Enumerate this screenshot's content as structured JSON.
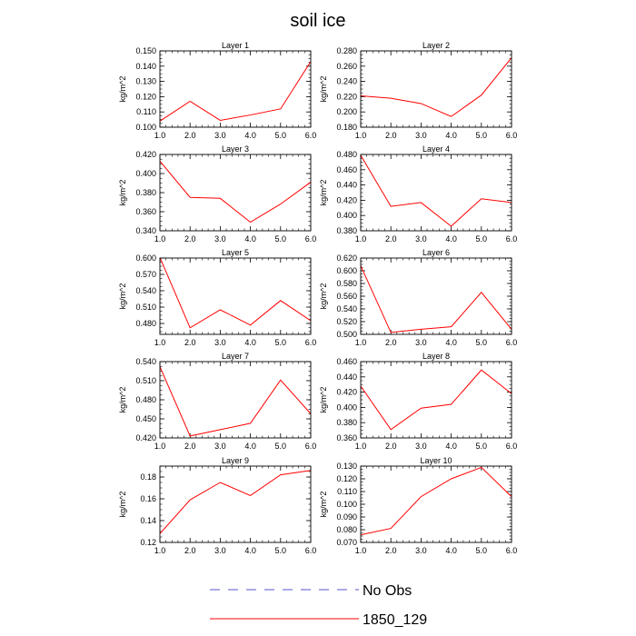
{
  "title": "soil ice",
  "colors": {
    "model": "#ff0000",
    "obs": "#5555cc",
    "axis": "#000000"
  },
  "legend": [
    {
      "label": "No Obs",
      "style": "dashed",
      "color": "#5555cc"
    },
    {
      "label": "1850_129",
      "style": "solid",
      "color": "#ff0000"
    }
  ],
  "chart_data": [
    {
      "type": "line",
      "title": "Layer 1",
      "xlabel": "",
      "ylabel": "kg/m^2",
      "x": [
        1,
        2,
        3,
        4,
        5,
        6
      ],
      "xlim": [
        1,
        6
      ],
      "xticks": [
        "1.0",
        "2.0",
        "3.0",
        "4.0",
        "5.0",
        "6.0"
      ],
      "ylim": [
        0.1,
        0.15
      ],
      "yticks": [
        "0.100",
        "0.110",
        "0.120",
        "0.130",
        "0.140",
        "0.150"
      ],
      "series": [
        {
          "name": "1850_129",
          "values": [
            0.104,
            0.117,
            0.1045,
            0.108,
            0.112,
            0.143
          ]
        }
      ]
    },
    {
      "type": "line",
      "title": "Layer 2",
      "xlabel": "",
      "ylabel": "kg/m^2",
      "x": [
        1,
        2,
        3,
        4,
        5,
        6
      ],
      "xlim": [
        1,
        6
      ],
      "xticks": [
        "1.0",
        "2.0",
        "3.0",
        "4.0",
        "5.0",
        "6.0"
      ],
      "ylim": [
        0.18,
        0.28
      ],
      "yticks": [
        "0.180",
        "0.200",
        "0.220",
        "0.240",
        "0.260",
        "0.280"
      ],
      "series": [
        {
          "name": "1850_129",
          "values": [
            0.221,
            0.218,
            0.211,
            0.194,
            0.222,
            0.271
          ]
        }
      ]
    },
    {
      "type": "line",
      "title": "Layer 3",
      "xlabel": "",
      "ylabel": "kg/m^2",
      "x": [
        1,
        2,
        3,
        4,
        5,
        6
      ],
      "xlim": [
        1,
        6
      ],
      "xticks": [
        "1.0",
        "2.0",
        "3.0",
        "4.0",
        "5.0",
        "6.0"
      ],
      "ylim": [
        0.34,
        0.42
      ],
      "yticks": [
        "0.340",
        "0.360",
        "0.380",
        "0.400",
        "0.420"
      ],
      "series": [
        {
          "name": "1850_129",
          "values": [
            0.413,
            0.375,
            0.374,
            0.349,
            0.368,
            0.391
          ]
        }
      ]
    },
    {
      "type": "line",
      "title": "Layer 4",
      "xlabel": "",
      "ylabel": "kg/m^2",
      "x": [
        1,
        2,
        3,
        4,
        5,
        6
      ],
      "xlim": [
        1,
        6
      ],
      "xticks": [
        "1.0",
        "2.0",
        "3.0",
        "4.0",
        "5.0",
        "6.0"
      ],
      "ylim": [
        0.38,
        0.48
      ],
      "yticks": [
        "0.380",
        "0.400",
        "0.420",
        "0.440",
        "0.460",
        "0.480"
      ],
      "series": [
        {
          "name": "1850_129",
          "values": [
            0.479,
            0.412,
            0.417,
            0.386,
            0.422,
            0.417
          ]
        }
      ]
    },
    {
      "type": "line",
      "title": "Layer 5",
      "xlabel": "",
      "ylabel": "kg/m^2",
      "x": [
        1,
        2,
        3,
        4,
        5,
        6
      ],
      "xlim": [
        1,
        6
      ],
      "xticks": [
        "1.0",
        "2.0",
        "3.0",
        "4.0",
        "5.0",
        "6.0"
      ],
      "ylim": [
        0.46,
        0.6
      ],
      "yticks": [
        "0.480",
        "0.510",
        "0.540",
        "0.570",
        "0.600"
      ],
      "series": [
        {
          "name": "1850_129",
          "values": [
            0.601,
            0.472,
            0.505,
            0.477,
            0.522,
            0.485
          ]
        }
      ]
    },
    {
      "type": "line",
      "title": "Layer 6",
      "xlabel": "",
      "ylabel": "kg/m^2",
      "x": [
        1,
        2,
        3,
        4,
        5,
        6
      ],
      "xlim": [
        1,
        6
      ],
      "xticks": [
        "1.0",
        "2.0",
        "3.0",
        "4.0",
        "5.0",
        "6.0"
      ],
      "ylim": [
        0.5,
        0.62
      ],
      "yticks": [
        "0.500",
        "0.520",
        "0.540",
        "0.560",
        "0.580",
        "0.600",
        "0.620"
      ],
      "series": [
        {
          "name": "1850_129",
          "values": [
            0.608,
            0.503,
            0.508,
            0.512,
            0.566,
            0.508
          ]
        }
      ]
    },
    {
      "type": "line",
      "title": "Layer 7",
      "xlabel": "",
      "ylabel": "kg/m^2",
      "x": [
        1,
        2,
        3,
        4,
        5,
        6
      ],
      "xlim": [
        1,
        6
      ],
      "xticks": [
        "1.0",
        "2.0",
        "3.0",
        "4.0",
        "5.0",
        "6.0"
      ],
      "ylim": [
        0.42,
        0.54
      ],
      "yticks": [
        "0.420",
        "0.450",
        "0.480",
        "0.510",
        "0.540"
      ],
      "series": [
        {
          "name": "1850_129",
          "values": [
            0.532,
            0.423,
            0.433,
            0.443,
            0.511,
            0.458
          ]
        }
      ]
    },
    {
      "type": "line",
      "title": "Layer 8",
      "xlabel": "",
      "ylabel": "kg/m^2",
      "x": [
        1,
        2,
        3,
        4,
        5,
        6
      ],
      "xlim": [
        1,
        6
      ],
      "xticks": [
        "1.0",
        "2.0",
        "3.0",
        "4.0",
        "5.0",
        "6.0"
      ],
      "ylim": [
        0.36,
        0.46
      ],
      "yticks": [
        "0.360",
        "0.380",
        "0.400",
        "0.420",
        "0.440",
        "0.460"
      ],
      "series": [
        {
          "name": "1850_129",
          "values": [
            0.428,
            0.371,
            0.399,
            0.404,
            0.449,
            0.418
          ]
        }
      ]
    },
    {
      "type": "line",
      "title": "Layer 9",
      "xlabel": "",
      "ylabel": "kg/m^2",
      "x": [
        1,
        2,
        3,
        4,
        5,
        6
      ],
      "xlim": [
        1,
        6
      ],
      "xticks": [
        "1.0",
        "2.0",
        "3.0",
        "4.0",
        "5.0",
        "6.0"
      ],
      "ylim": [
        0.12,
        0.19
      ],
      "yticks": [
        "0.12",
        "0.14",
        "0.16",
        "0.18"
      ],
      "series": [
        {
          "name": "1850_129",
          "values": [
            0.128,
            0.159,
            0.175,
            0.163,
            0.182,
            0.186
          ]
        }
      ]
    },
    {
      "type": "line",
      "title": "Layer 10",
      "xlabel": "",
      "ylabel": "kg/m^2",
      "x": [
        1,
        2,
        3,
        4,
        5,
        6
      ],
      "xlim": [
        1,
        6
      ],
      "xticks": [
        "1.0",
        "2.0",
        "3.0",
        "4.0",
        "5.0",
        "6.0"
      ],
      "ylim": [
        0.07,
        0.13
      ],
      "yticks": [
        "0.070",
        "0.080",
        "0.090",
        "0.100",
        "0.110",
        "0.120",
        "0.130"
      ],
      "series": [
        {
          "name": "1850_129",
          "values": [
            0.076,
            0.081,
            0.106,
            0.12,
            0.129,
            0.106
          ]
        }
      ]
    }
  ]
}
